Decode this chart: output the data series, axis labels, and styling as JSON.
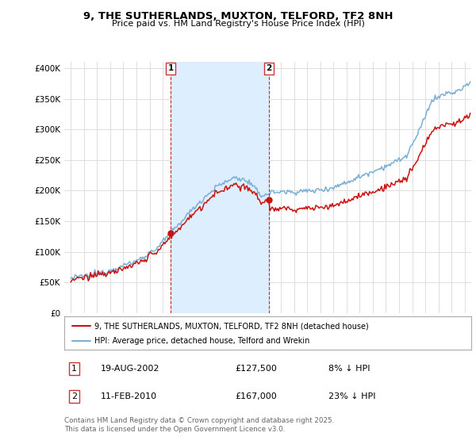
{
  "title": "9, THE SUTHERLANDS, MUXTON, TELFORD, TF2 8NH",
  "subtitle": "Price paid vs. HM Land Registry's House Price Index (HPI)",
  "ylabel_ticks": [
    "£0",
    "£50K",
    "£100K",
    "£150K",
    "£200K",
    "£250K",
    "£300K",
    "£350K",
    "£400K"
  ],
  "ytick_vals": [
    0,
    50000,
    100000,
    150000,
    200000,
    250000,
    300000,
    350000,
    400000
  ],
  "ylim": [
    0,
    410000
  ],
  "xlim_start": 1994.5,
  "xlim_end": 2025.5,
  "background_color": "#ffffff",
  "plot_bg_color": "#ffffff",
  "grid_color": "#dddddd",
  "hpi_color": "#7bafd4",
  "price_color": "#cc1111",
  "shade_color": "#ddeeff",
  "t1_x": 2002.6,
  "t2_x": 2010.1,
  "marker1_y": 127500,
  "marker2_y": 167000,
  "legend_label_price": "9, THE SUTHERLANDS, MUXTON, TELFORD, TF2 8NH (detached house)",
  "legend_label_hpi": "HPI: Average price, detached house, Telford and Wrekin",
  "note1_date": "19-AUG-2002",
  "note1_price": "£127,500",
  "note1_pct": "8% ↓ HPI",
  "note2_date": "11-FEB-2010",
  "note2_price": "£167,000",
  "note2_pct": "23% ↓ HPI",
  "footer": "Contains HM Land Registry data © Crown copyright and database right 2025.\nThis data is licensed under the Open Government Licence v3.0."
}
